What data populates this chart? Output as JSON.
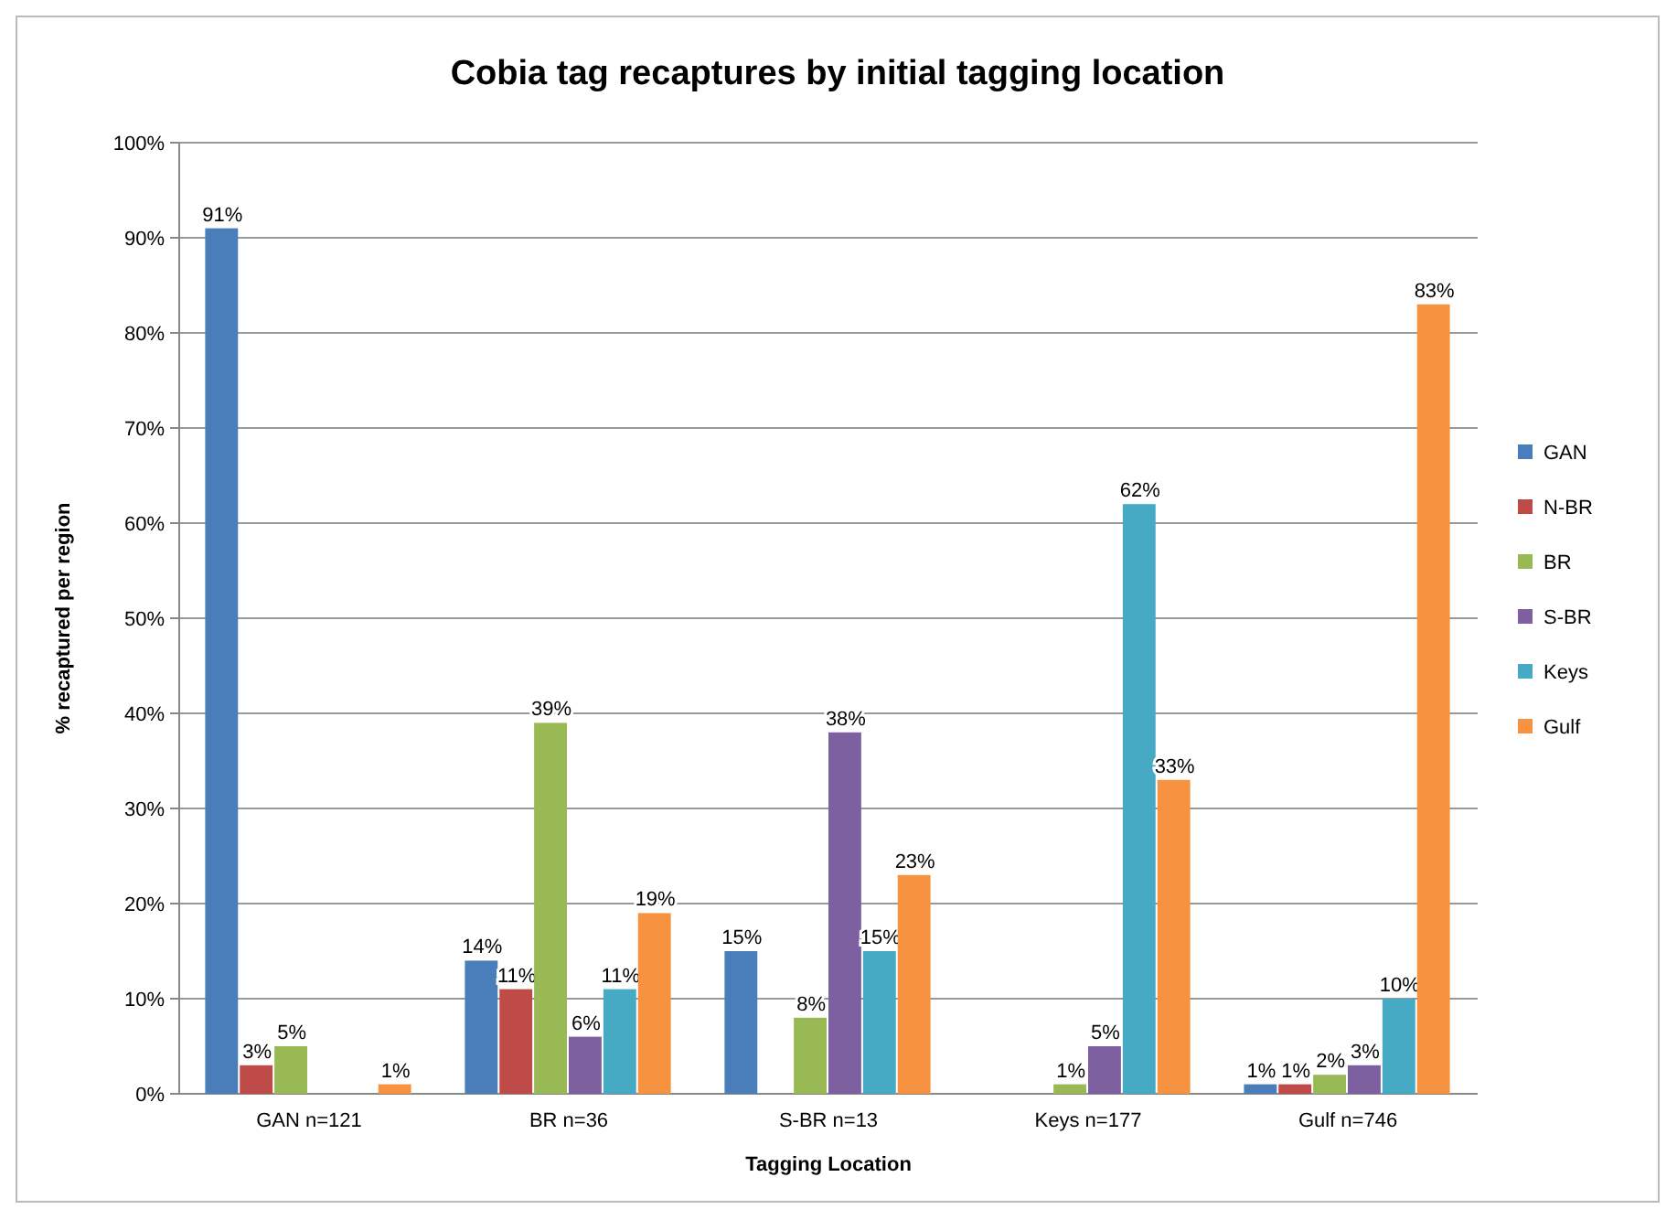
{
  "chart_data": {
    "type": "bar",
    "title": "Cobia tag recaptures by initial tagging location",
    "xlabel": "Tagging Location",
    "ylabel": "% recaptured per region",
    "categories": [
      "GAN n=121",
      "BR n=36",
      "S-BR n=13",
      "Keys n=177",
      "Gulf n=746"
    ],
    "series": [
      {
        "name": "GAN",
        "color": "#4a7ebb",
        "values": [
          91,
          14,
          15,
          null,
          1
        ],
        "value_labels": [
          "91%",
          "14%",
          "15%",
          null,
          "1%"
        ]
      },
      {
        "name": "N-BR",
        "color": "#be4b48",
        "values": [
          3,
          11,
          null,
          null,
          1
        ],
        "value_labels": [
          "3%",
          "11%",
          null,
          null,
          "1%"
        ]
      },
      {
        "name": "BR",
        "color": "#98b954",
        "values": [
          5,
          39,
          8,
          1,
          2
        ],
        "value_labels": [
          "5%",
          "39%",
          "8%",
          "1%",
          "2%"
        ]
      },
      {
        "name": "S-BR",
        "color": "#7d60a0",
        "values": [
          null,
          6,
          38,
          5,
          3
        ],
        "value_labels": [
          null,
          "6%",
          "38%",
          "5%",
          "3%"
        ]
      },
      {
        "name": "Keys",
        "color": "#46aac5",
        "values": [
          null,
          11,
          15,
          62,
          10
        ],
        "value_labels": [
          null,
          "11%",
          "15%",
          "62%",
          "10%"
        ]
      },
      {
        "name": "Gulf",
        "color": "#f69240",
        "values": [
          1,
          19,
          23,
          33,
          83
        ],
        "value_labels": [
          "1%",
          "19%",
          "23%",
          "33%",
          "83%"
        ]
      }
    ],
    "ylim": [
      0,
      100
    ],
    "yticks": [
      {
        "value": 0,
        "label": "0%"
      },
      {
        "value": 10,
        "label": "10%"
      },
      {
        "value": 20,
        "label": "20%"
      },
      {
        "value": 30,
        "label": "30%"
      },
      {
        "value": 40,
        "label": "40%"
      },
      {
        "value": 50,
        "label": "50%"
      },
      {
        "value": 60,
        "label": "60%"
      },
      {
        "value": 70,
        "label": "70%"
      },
      {
        "value": 80,
        "label": "80%"
      },
      {
        "value": 90,
        "label": "90%"
      },
      {
        "value": 100,
        "label": "100%"
      }
    ],
    "grid": "y",
    "legend": "right"
  }
}
